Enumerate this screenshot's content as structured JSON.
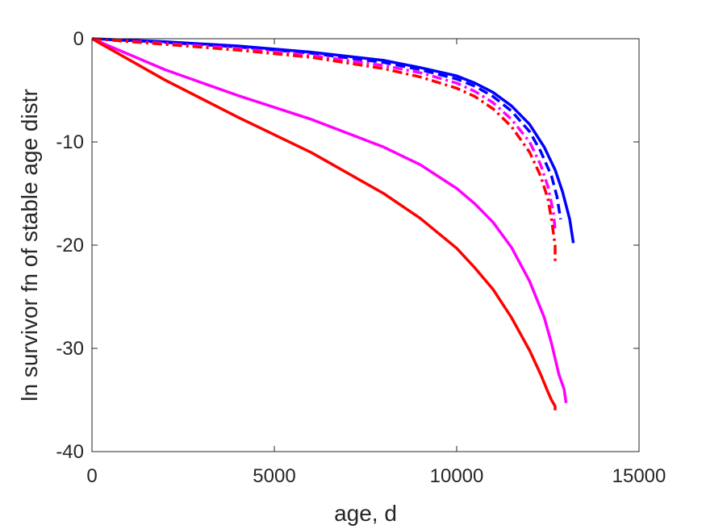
{
  "chart_data": {
    "type": "line",
    "title": "",
    "xlabel": "age, d",
    "ylabel": "ln survivor fn of stable age distr",
    "xlim": [
      0,
      15000
    ],
    "ylim": [
      -40,
      0
    ],
    "xticks": [
      0,
      5000,
      10000,
      15000
    ],
    "yticks": [
      -40,
      -30,
      -20,
      -10,
      0
    ],
    "xtick_labels": [
      "0",
      "5000",
      "10000",
      "15000"
    ],
    "ytick_labels": [
      "-40",
      "-30",
      "-20",
      "-10",
      "0"
    ],
    "grid": false,
    "legend": "none",
    "series": [
      {
        "color": "#0000ff",
        "dash": "solid",
        "x": [
          0,
          2000,
          4000,
          6000,
          8000,
          9000,
          10000,
          10500,
          11000,
          11500,
          12000,
          12400,
          12700,
          12900,
          13100,
          13200
        ],
        "y": [
          0,
          -0.3,
          -0.7,
          -1.3,
          -2.1,
          -2.8,
          -3.6,
          -4.3,
          -5.2,
          -6.5,
          -8.3,
          -10.5,
          -12.7,
          -14.8,
          -17.5,
          -19.8
        ]
      },
      {
        "color": "#0000ff",
        "dash": "dashed",
        "x": [
          0,
          2000,
          4000,
          6000,
          8000,
          9000,
          10000,
          10500,
          11000,
          11500,
          12000,
          12300,
          12600,
          12750,
          12850
        ],
        "y": [
          0,
          -0.35,
          -0.8,
          -1.4,
          -2.3,
          -3.0,
          -3.9,
          -4.6,
          -5.6,
          -7.0,
          -9.0,
          -10.9,
          -13.3,
          -15.3,
          -17.5
        ]
      },
      {
        "color": "#ff00ff",
        "dash": "dashdot",
        "x": [
          0,
          2000,
          4000,
          6000,
          8000,
          9000,
          10000,
          10500,
          11000,
          11500,
          12000,
          12300,
          12500,
          12650,
          12700
        ],
        "y": [
          0,
          -0.45,
          -0.95,
          -1.6,
          -2.6,
          -3.3,
          -4.3,
          -5.1,
          -6.2,
          -7.8,
          -10.0,
          -12.2,
          -14.3,
          -16.8,
          -18.5
        ]
      },
      {
        "color": "#ff0000",
        "dash": "dashdot",
        "x": [
          0,
          2000,
          4000,
          6000,
          8000,
          9000,
          10000,
          10500,
          11000,
          11500,
          12000,
          12300,
          12500,
          12600,
          12700,
          12700
        ],
        "y": [
          0,
          -0.55,
          -1.1,
          -1.8,
          -2.9,
          -3.7,
          -4.8,
          -5.6,
          -6.8,
          -8.5,
          -11.0,
          -13.3,
          -15.5,
          -17.5,
          -20.0,
          -21.8
        ]
      },
      {
        "color": "#ff00ff",
        "dash": "solid",
        "x": [
          0,
          2000,
          4000,
          6000,
          8000,
          9000,
          10000,
          10500,
          11000,
          11500,
          12000,
          12400,
          12600,
          12800,
          12950,
          13000
        ],
        "y": [
          0,
          -3.0,
          -5.5,
          -7.8,
          -10.5,
          -12.2,
          -14.5,
          -16.0,
          -17.8,
          -20.2,
          -23.5,
          -27.0,
          -29.5,
          -32.5,
          -34.0,
          -35.3
        ]
      },
      {
        "color": "#ff0000",
        "dash": "solid",
        "x": [
          0,
          2000,
          4000,
          6000,
          8000,
          9000,
          10000,
          10500,
          11000,
          11500,
          12000,
          12300,
          12500,
          12600,
          12700,
          12700
        ],
        "y": [
          0,
          -4.0,
          -7.6,
          -11.0,
          -15.0,
          -17.4,
          -20.3,
          -22.2,
          -24.3,
          -27.0,
          -30.2,
          -32.5,
          -34.2,
          -35.0,
          -35.6,
          -36.0
        ]
      }
    ]
  }
}
